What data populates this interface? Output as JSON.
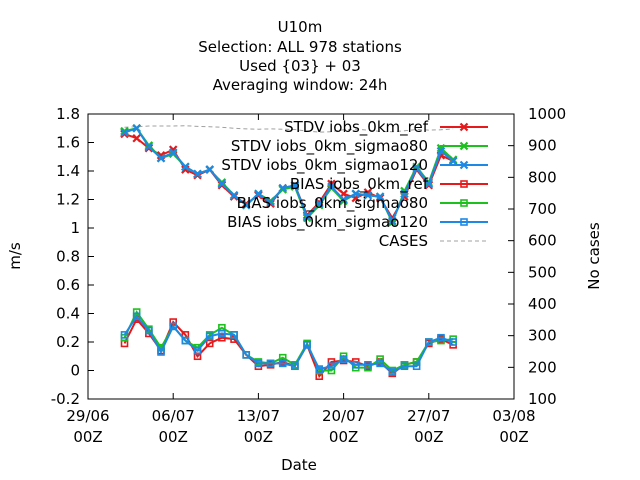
{
  "chart_data": {
    "type": "line",
    "title_lines": [
      "U10m",
      "Selection: ALL    978 stations",
      "Used {03} + 03",
      "Averaging window: 24h"
    ],
    "xlabel": "Date",
    "ylabel": "m/s",
    "y2label": "No cases",
    "ylim": [
      -0.2,
      1.8
    ],
    "y2lim": [
      100,
      1000
    ],
    "xlim": [
      "2023-06-29 00:00",
      "2023-08-03 00:00"
    ],
    "x_ticks": [
      {
        "date": "2023-06-29",
        "line1": "29/06",
        "line2": "00Z"
      },
      {
        "date": "2023-07-06",
        "line1": "06/07",
        "line2": "00Z"
      },
      {
        "date": "2023-07-13",
        "line1": "13/07",
        "line2": "00Z"
      },
      {
        "date": "2023-07-20",
        "line1": "20/07",
        "line2": "00Z"
      },
      {
        "date": "2023-07-27",
        "line1": "27/07",
        "line2": "00Z"
      },
      {
        "date": "2023-08-03",
        "line1": "03/08",
        "line2": "00Z"
      }
    ],
    "y_ticks": [
      "-0.2",
      "0",
      "0.2",
      "0.4",
      "0.6",
      "0.8",
      "1",
      "1.2",
      "1.4",
      "1.6",
      "1.8"
    ],
    "y2_ticks": [
      "100",
      "200",
      "300",
      "400",
      "500",
      "600",
      "700",
      "800",
      "900",
      "1000"
    ],
    "legend_position": "top-right",
    "x": [
      "2023-07-02",
      "2023-07-03",
      "2023-07-04",
      "2023-07-05",
      "2023-07-06",
      "2023-07-07",
      "2023-07-08",
      "2023-07-09",
      "2023-07-10",
      "2023-07-11",
      "2023-07-12",
      "2023-07-13",
      "2023-07-14",
      "2023-07-15",
      "2023-07-16",
      "2023-07-17",
      "2023-07-18",
      "2023-07-19",
      "2023-07-20",
      "2023-07-21",
      "2023-07-22",
      "2023-07-23",
      "2023-07-24",
      "2023-07-25",
      "2023-07-26",
      "2023-07-27",
      "2023-07-28",
      "2023-07-29"
    ],
    "series": [
      {
        "name": "STDV iobs_0km_ref",
        "color": "#e41a1c",
        "marker": "x",
        "axis": "y",
        "values": [
          1.66,
          1.63,
          1.56,
          1.51,
          1.55,
          1.41,
          1.37,
          1.41,
          1.3,
          1.22,
          1.17,
          1.23,
          1.17,
          1.28,
          1.3,
          1.09,
          1.18,
          1.31,
          1.24,
          1.21,
          1.25,
          1.21,
          1.07,
          1.22,
          1.41,
          1.3,
          1.51,
          1.47
        ]
      },
      {
        "name": "STDV iobs_0km_sigmao80",
        "color": "#1ec01e",
        "marker": "x",
        "axis": "y",
        "values": [
          1.68,
          1.7,
          1.58,
          1.49,
          1.52,
          1.43,
          1.38,
          1.41,
          1.32,
          1.23,
          1.16,
          1.24,
          1.19,
          1.27,
          1.29,
          1.07,
          1.16,
          1.28,
          1.19,
          1.24,
          1.23,
          1.22,
          1.04,
          1.26,
          1.43,
          1.32,
          1.56,
          1.48
        ]
      },
      {
        "name": "STDV iobs_0km_sigmao120",
        "color": "#1e88e5",
        "marker": "x",
        "axis": "y",
        "values": [
          1.67,
          1.7,
          1.57,
          1.49,
          1.53,
          1.43,
          1.38,
          1.41,
          1.31,
          1.23,
          1.16,
          1.24,
          1.18,
          1.28,
          1.3,
          1.08,
          1.17,
          1.29,
          1.2,
          1.24,
          1.23,
          1.22,
          1.05,
          1.24,
          1.42,
          1.31,
          1.54,
          1.47
        ]
      },
      {
        "name": "BIAS iobs_0km_ref",
        "color": "#e41a1c",
        "marker": "square",
        "axis": "y",
        "values": [
          0.19,
          0.36,
          0.26,
          0.14,
          0.34,
          0.25,
          0.1,
          0.19,
          0.23,
          0.22,
          0.11,
          0.03,
          0.04,
          0.06,
          0.03,
          0.18,
          -0.04,
          0.06,
          0.07,
          0.06,
          0.03,
          0.06,
          -0.02,
          0.04,
          0.06,
          0.19,
          0.22,
          0.18
        ]
      },
      {
        "name": "BIAS iobs_0km_sigmao80",
        "color": "#1ec01e",
        "marker": "square",
        "axis": "y",
        "values": [
          0.23,
          0.41,
          0.29,
          0.16,
          0.31,
          0.21,
          0.16,
          0.25,
          0.3,
          0.25,
          0.11,
          0.06,
          0.05,
          0.09,
          0.04,
          0.19,
          0.0,
          0.0,
          0.1,
          0.02,
          0.02,
          0.08,
          0.0,
          0.04,
          0.06,
          0.2,
          0.21,
          0.22
        ]
      },
      {
        "name": "BIAS iobs_0km_sigmao120",
        "color": "#1e88e5",
        "marker": "square",
        "axis": "y",
        "values": [
          0.25,
          0.38,
          0.28,
          0.13,
          0.31,
          0.21,
          0.14,
          0.24,
          0.26,
          0.25,
          0.11,
          0.05,
          0.05,
          0.05,
          0.03,
          0.18,
          0.01,
          0.03,
          0.08,
          0.04,
          0.04,
          0.05,
          -0.01,
          0.03,
          0.03,
          0.2,
          0.23,
          0.2
        ]
      },
      {
        "name": "CASES",
        "color": "#a0a0a0",
        "marker": "none",
        "dash": "4,3",
        "axis": "y2",
        "values": [
          958,
          960,
          962,
          962,
          962,
          963,
          961,
          960,
          958,
          955,
          953,
          952,
          953,
          952,
          951,
          946,
          943,
          944,
          950,
          952,
          949,
          945,
          944,
          947,
          951,
          949,
          950,
          953
        ]
      }
    ]
  }
}
